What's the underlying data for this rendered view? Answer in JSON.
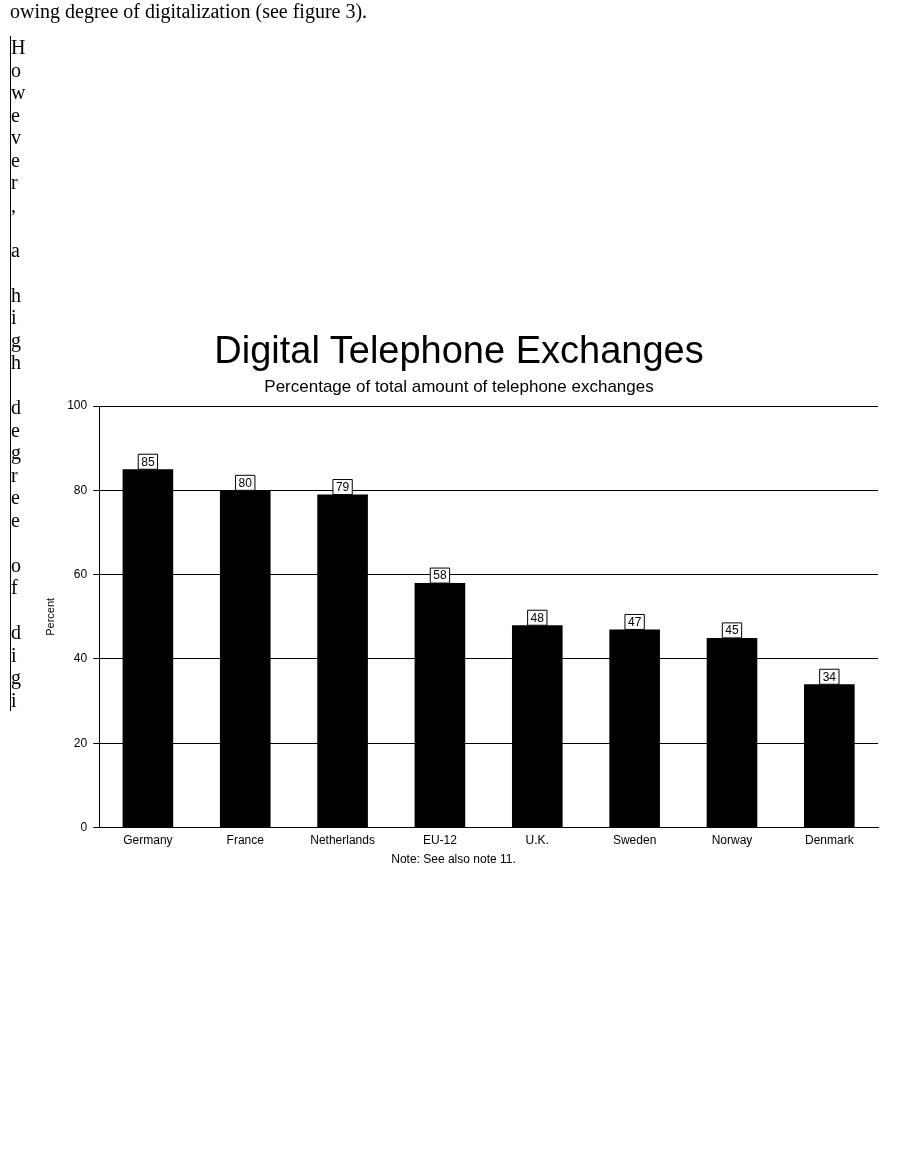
{
  "chart_data": {
    "type": "bar",
    "title": "Digital Telephone Exchanges",
    "subtitle": "Percentage of total amount of telephone exchanges",
    "ylabel": "Percent",
    "categories": [
      "Germany",
      "France",
      "Netherlands",
      "EU-12",
      "U.K.",
      "Sweden",
      "Norway",
      "Denmark"
    ],
    "values": [
      85,
      80,
      79,
      58,
      48,
      47,
      45,
      34
    ],
    "color": "#000000",
    "ylim": [
      0,
      100
    ],
    "yticks": [
      0,
      20,
      40,
      60,
      80,
      100
    ],
    "grid": "y",
    "legend": false,
    "data_labels": true,
    "annotations": [
      "owing degree of digitalization (see figure 3).",
      "However, a high degree of digi",
      "Note: See also note 11."
    ]
  }
}
